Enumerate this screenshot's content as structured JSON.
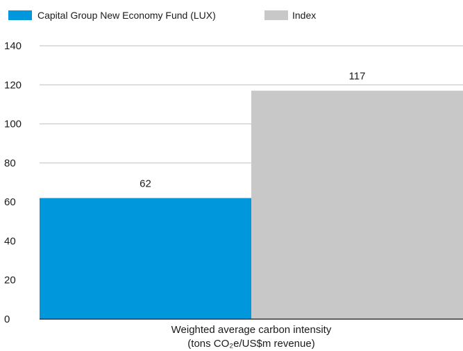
{
  "chart_data": {
    "type": "bar",
    "categories": [
      "Weighted average carbon intensity"
    ],
    "series": [
      {
        "name": "Capital Group New Economy Fund (LUX)",
        "values": [
          62
        ],
        "color": "#0097dc"
      },
      {
        "name": "Index",
        "values": [
          117
        ],
        "color": "#c8c8c8"
      }
    ],
    "data_labels": [
      "62",
      "117"
    ],
    "xlabel_lines": [
      "Weighted average carbon intensity",
      "(tons CO₂e/US$m  revenue)"
    ],
    "ylabel": "",
    "ylim": [
      0,
      140
    ],
    "yticks": [
      0,
      20,
      40,
      60,
      80,
      100,
      120,
      140
    ],
    "grid": true,
    "legend_position": "top-left",
    "gridline_color": "#bfbfbf",
    "axis_color": "#333333"
  }
}
